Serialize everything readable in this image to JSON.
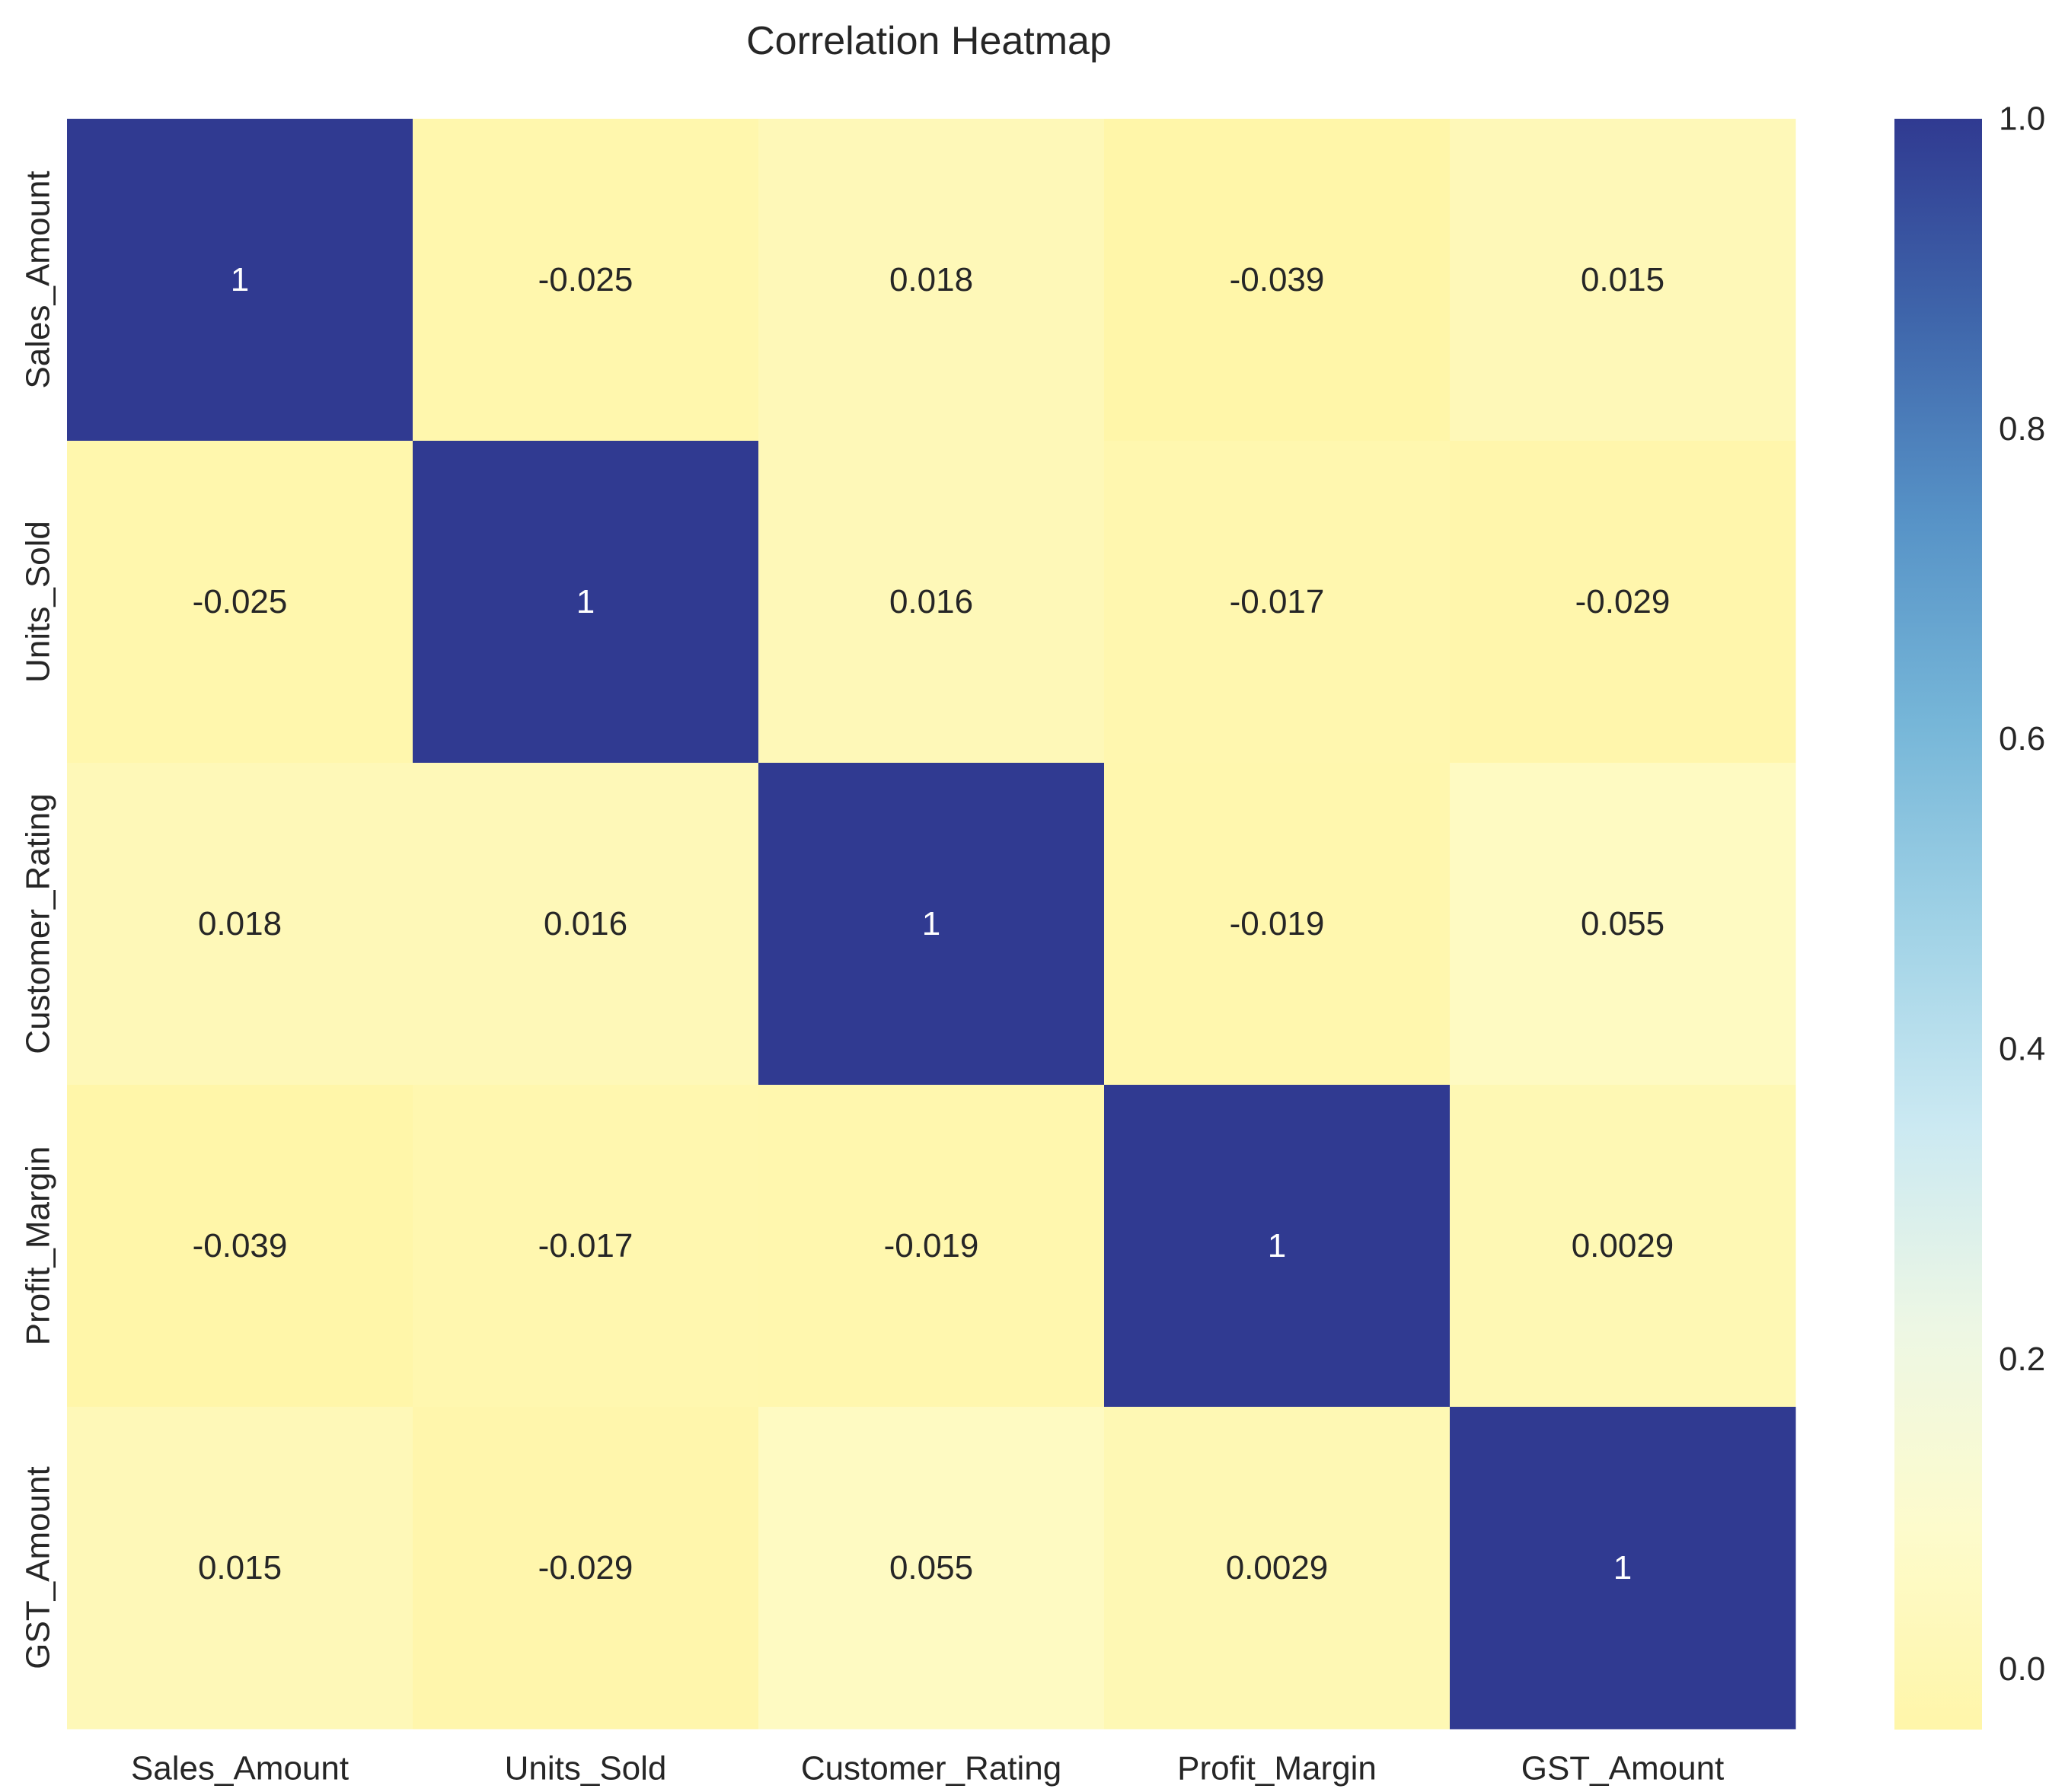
{
  "chart_data": {
    "type": "heatmap",
    "title": "Correlation Heatmap",
    "variables": [
      "Sales_Amount",
      "Units_Sold",
      "Customer_Rating",
      "Profit_Margin",
      "GST_Amount"
    ],
    "matrix": [
      [
        1,
        -0.025,
        0.018,
        -0.039,
        0.015
      ],
      [
        -0.025,
        1,
        0.016,
        -0.017,
        -0.029
      ],
      [
        0.018,
        0.016,
        1,
        -0.019,
        0.055
      ],
      [
        -0.039,
        -0.017,
        -0.019,
        1,
        0.0029
      ],
      [
        0.015,
        -0.029,
        0.055,
        0.0029,
        1
      ]
    ],
    "annotations": [
      [
        "1",
        "-0.025",
        "0.018",
        "-0.039",
        "0.015"
      ],
      [
        "-0.025",
        "1",
        "0.016",
        "-0.017",
        "-0.029"
      ],
      [
        "0.018",
        "0.016",
        "1",
        "-0.019",
        "0.055"
      ],
      [
        "-0.039",
        "-0.017",
        "-0.019",
        "1",
        "0.0029"
      ],
      [
        "0.015",
        "-0.029",
        "0.055",
        "0.0029",
        "1"
      ]
    ],
    "colorbar": {
      "vmin": -0.039,
      "vmax": 1.0,
      "ticks": [
        0.0,
        0.2,
        0.4,
        0.6,
        0.8,
        1.0
      ],
      "tick_labels": [
        "0.0",
        "0.2",
        "0.4",
        "0.6",
        "0.8",
        "1.0"
      ],
      "colormap": "RdYlBu-like (yellow to dark blue)",
      "colors": [
        "#fff6a9",
        "#fdfbcc",
        "#edf7e4",
        "#cbe9f2",
        "#a0d2e6",
        "#76b6d8",
        "#5793c7",
        "#3f66ab",
        "#303a91"
      ]
    },
    "text_color_dark": "#262626",
    "text_color_light": "#ffffff"
  }
}
